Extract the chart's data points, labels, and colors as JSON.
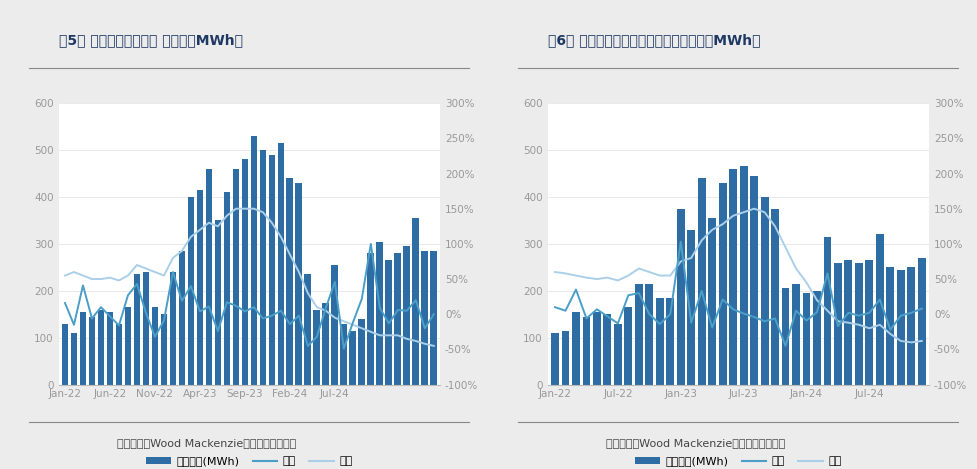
{
  "chart1": {
    "title": "图5： 德国储能月度新增 （单位：MWh）",
    "source": "数据来源：Wood Mackenzie，东吴证券研究所",
    "xtick_labels": [
      "Jan-22",
      "Jun-22",
      "Nov-22",
      "Apr-23",
      "Sep-23",
      "Feb-24",
      "Jul-24"
    ],
    "xtick_positions": [
      0,
      5,
      10,
      15,
      20,
      25,
      30
    ],
    "ylim_left": [
      0,
      600
    ],
    "ylim_right": [
      -1.0,
      3.0
    ],
    "yticks_left": [
      0,
      100,
      200,
      300,
      400,
      500,
      600
    ],
    "yticks_right": [
      -1.0,
      -0.5,
      0.0,
      0.5,
      1.0,
      1.5,
      2.0,
      2.5,
      3.0
    ],
    "bars": [
      130,
      110,
      155,
      145,
      160,
      155,
      130,
      165,
      235,
      240,
      165,
      150,
      240,
      285,
      400,
      415,
      460,
      350,
      410,
      460,
      480,
      530,
      500,
      490,
      515,
      440,
      430,
      235,
      160,
      175,
      255,
      130,
      115,
      140,
      280,
      305,
      265,
      280,
      295,
      355,
      285,
      285
    ],
    "huan": [
      0.16,
      -0.15,
      0.41,
      -0.06,
      0.1,
      -0.03,
      -0.16,
      0.27,
      0.43,
      0.02,
      -0.32,
      -0.09,
      0.6,
      0.19,
      0.4,
      0.04,
      0.11,
      -0.24,
      0.17,
      0.12,
      0.04,
      0.1,
      -0.06,
      -0.02,
      0.05,
      -0.14,
      -0.02,
      -0.45,
      -0.32,
      0.09,
      0.46,
      -0.49,
      -0.12,
      0.22,
      1.0,
      0.09,
      -0.13,
      0.06,
      0.05,
      0.2,
      -0.2,
      0.0
    ],
    "tong": [
      0.55,
      0.6,
      0.55,
      0.5,
      0.5,
      0.52,
      0.48,
      0.55,
      0.7,
      0.65,
      0.6,
      0.55,
      0.8,
      0.9,
      1.1,
      1.2,
      1.3,
      1.25,
      1.4,
      1.5,
      1.5,
      1.5,
      1.45,
      1.3,
      1.1,
      0.85,
      0.6,
      0.3,
      0.1,
      0.05,
      -0.05,
      -0.1,
      -0.15,
      -0.2,
      -0.25,
      -0.3,
      -0.3,
      -0.3,
      -0.35,
      -0.38,
      -0.42,
      -0.45
    ],
    "legend_labels": [
      "新增容量(MWh)",
      "环比",
      "同比"
    ],
    "n_bars": 42
  },
  "chart2": {
    "title": "图6： 德国电池户用储能月度新增（单位：MWh）",
    "source": "数据来源：Wood Mackenzie，东吴证券研究所",
    "xtick_labels": [
      "Jan-22",
      "Jul-22",
      "Jan-23",
      "Jul-23",
      "Jan-24",
      "Jul-24"
    ],
    "xtick_positions": [
      0,
      6,
      12,
      18,
      24,
      30
    ],
    "ylim_left": [
      0,
      600
    ],
    "ylim_right": [
      -1.0,
      3.0
    ],
    "yticks_left": [
      0,
      100,
      200,
      300,
      400,
      500,
      600
    ],
    "yticks_right": [
      -1.0,
      -0.5,
      0.0,
      0.5,
      1.0,
      1.5,
      2.0,
      2.5,
      3.0
    ],
    "bars": [
      110,
      115,
      155,
      145,
      155,
      150,
      130,
      165,
      215,
      215,
      185,
      185,
      375,
      330,
      440,
      355,
      430,
      460,
      465,
      445,
      400,
      375,
      205,
      215,
      195,
      200,
      315,
      260,
      265,
      260,
      265,
      320,
      250,
      245,
      250,
      270
    ],
    "huan": [
      0.1,
      0.05,
      0.35,
      -0.06,
      0.07,
      -0.03,
      -0.13,
      0.27,
      0.3,
      0.0,
      -0.14,
      0.0,
      1.03,
      -0.12,
      0.33,
      -0.19,
      0.21,
      0.07,
      0.01,
      -0.04,
      -0.1,
      -0.06,
      -0.45,
      0.05,
      -0.09,
      0.03,
      0.58,
      -0.17,
      0.02,
      -0.02,
      0.02,
      0.21,
      -0.22,
      -0.02,
      0.02,
      0.08
    ],
    "tong": [
      0.6,
      0.58,
      0.55,
      0.52,
      0.5,
      0.52,
      0.48,
      0.55,
      0.65,
      0.6,
      0.55,
      0.55,
      0.75,
      0.8,
      1.05,
      1.2,
      1.28,
      1.4,
      1.45,
      1.5,
      1.45,
      1.25,
      0.95,
      0.65,
      0.45,
      0.2,
      0.05,
      -0.1,
      -0.12,
      -0.15,
      -0.2,
      -0.15,
      -0.28,
      -0.38,
      -0.4,
      -0.38
    ],
    "legend_labels": [
      "新增容量(MWh)",
      "环比",
      "同比"
    ],
    "n_bars": 36
  },
  "bg_color": "#ececec",
  "plot_bg_color": "#ffffff",
  "bar_color": "#2e6da4",
  "huan_line_color": "#4a9ec8",
  "tong_line_color": "#aacfe8",
  "title_color": "#1f3864",
  "axis_color": "#999999",
  "source_color": "#444444",
  "title_fontsize": 10,
  "tick_fontsize": 7.5,
  "legend_fontsize": 8,
  "source_fontsize": 8
}
